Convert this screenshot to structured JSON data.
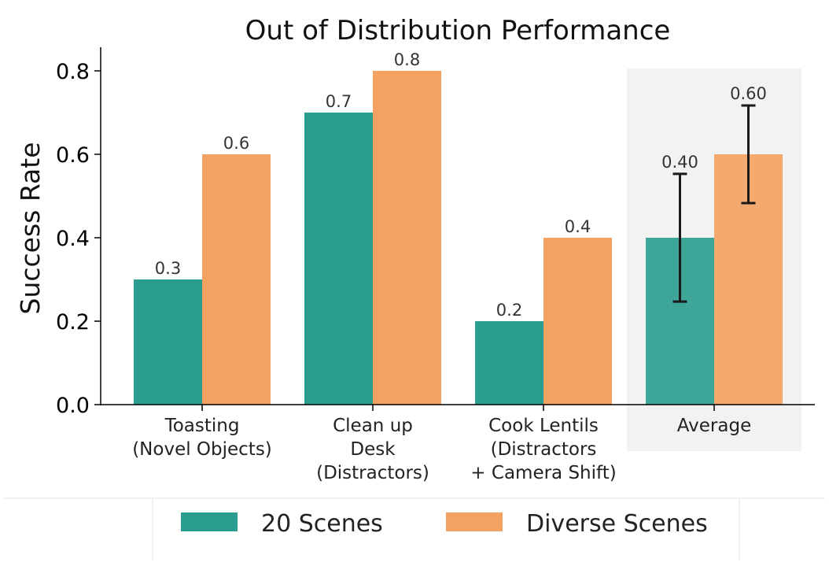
{
  "chart_data": {
    "type": "bar",
    "title": "Out of Distribution Performance",
    "xlabel": "",
    "ylabel": "Success Rate",
    "ylim": [
      0,
      0.85
    ],
    "yticks": [
      "0.0",
      "0.2",
      "0.4",
      "0.6",
      "0.8"
    ],
    "categories": [
      [
        "Toasting",
        "(Novel Objects)"
      ],
      [
        "Clean up",
        "Desk",
        "(Distractors)"
      ],
      [
        "Cook Lentils",
        "(Distractors",
        "+ Camera Shift)"
      ],
      [
        "Average"
      ]
    ],
    "series": [
      {
        "name": "20 Scenes",
        "color": "#2a9d8f",
        "values": [
          0.3,
          0.7,
          0.2,
          0.4
        ],
        "labels": [
          "0.3",
          "0.7",
          "0.2",
          "0.40"
        ],
        "error": [
          null,
          null,
          null,
          0.153
        ]
      },
      {
        "name": "Diverse Scenes",
        "color": "#f4a261",
        "values": [
          0.6,
          0.8,
          0.4,
          0.6
        ],
        "labels": [
          "0.6",
          "0.8",
          "0.4",
          "0.60"
        ],
        "error": [
          null,
          null,
          null,
          0.117
        ]
      }
    ],
    "highlight_category": "Average",
    "grid": false,
    "legend_position": "bottom"
  }
}
